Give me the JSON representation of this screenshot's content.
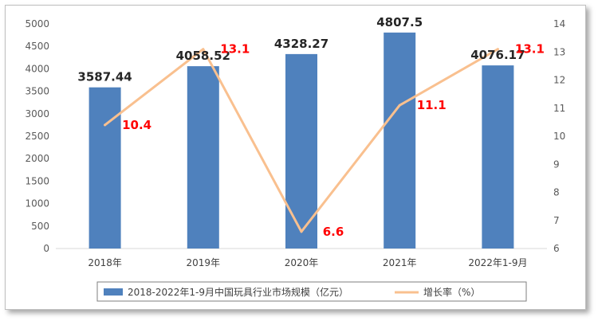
{
  "chart_data": {
    "type": "bar+line",
    "title": "",
    "categories": [
      "2018年",
      "2019年",
      "2020年",
      "2021年",
      "2022年1-9月"
    ],
    "series": [
      {
        "name": "2018-2022年1-9月中国玩具行业市场规模（亿元）",
        "type": "bar",
        "axis": "left",
        "values": [
          3587.44,
          4058.52,
          4328.27,
          4807.5,
          4076.17
        ],
        "labels": [
          "3587.44",
          "4058.52",
          "4328.27",
          "4807.5",
          "4076.17"
        ],
        "color": "#4f81bd"
      },
      {
        "name": "增长率（%）",
        "type": "line",
        "axis": "right",
        "values": [
          10.4,
          13.1,
          6.6,
          11.1,
          13.1
        ],
        "labels": [
          "10.4",
          "13.1",
          "6.6",
          "11.1",
          "13.1"
        ],
        "color": "#f9c08f",
        "label_color": "#ff0000"
      }
    ],
    "y_left": {
      "min": 0,
      "max": 5000,
      "step": 500
    },
    "y_right": {
      "min": 6,
      "max": 14,
      "step": 1
    },
    "grid": false,
    "legend_position": "bottom"
  }
}
